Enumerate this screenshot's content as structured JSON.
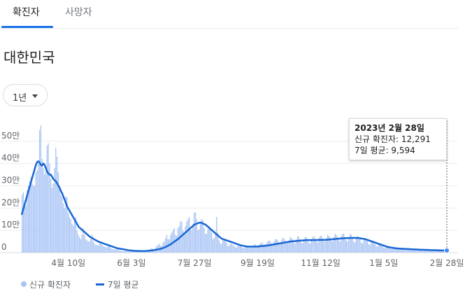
{
  "tabs": [
    {
      "label": "확진자",
      "active": true
    },
    {
      "label": "사망자",
      "active": false
    }
  ],
  "region": {
    "title": "대한민국"
  },
  "period": {
    "label": "1년"
  },
  "tooltip": {
    "date": "2023년 2월 28일",
    "new_cases": "신규 확진자: 12,291",
    "avg": "7일 평균: 9,594"
  },
  "legend": {
    "bars": "신규 확진자",
    "line": "7일 평균"
  },
  "colors": {
    "bar": "#a9c4f5",
    "line": "#1967d2",
    "accent": "#1a73e8",
    "grid": "#eeeeee"
  },
  "chart_data": {
    "type": "bar",
    "ylim": [
      0,
      60000
    ],
    "yticks": [
      {
        "value": 0,
        "label": "0"
      },
      {
        "value": 10000,
        "label": "10만"
      },
      {
        "value": 20000,
        "label": "20만"
      },
      {
        "value": 30000,
        "label": "30만"
      },
      {
        "value": 40000,
        "label": "40만"
      },
      {
        "value": 50000,
        "label": "50만"
      }
    ],
    "start_date": "2022-03-01",
    "end_date": "2023-02-28",
    "xticks": [
      {
        "date": "2022-04-10",
        "label": "4월 10일"
      },
      {
        "date": "2022-06-03",
        "label": "6월 3일"
      },
      {
        "date": "2022-07-27",
        "label": "7월 27일"
      },
      {
        "date": "2022-09-19",
        "label": "9월 19일"
      },
      {
        "date": "2022-11-12",
        "label": "11월 12일"
      },
      {
        "date": "2023-01-05",
        "label": "1월 5일"
      },
      {
        "date": "2023-02-28",
        "label": "2월 28일"
      }
    ],
    "series": [
      {
        "name": "신규 확진자",
        "type": "bar",
        "values": [
          26000,
          27000,
          22000,
          21000,
          28000,
          30000,
          32000,
          34000,
          31000,
          30000,
          30000,
          36000,
          37000,
          40000,
          55000,
          57000,
          42000,
          38000,
          35000,
          37000,
          48000,
          49000,
          40000,
          33000,
          29000,
          31000,
          38000,
          47000,
          43000,
          36000,
          29000,
          26000,
          25000,
          22000,
          20000,
          25000,
          25000,
          18000,
          16000,
          15000,
          13000,
          12000,
          14000,
          16000,
          10000,
          8000,
          7000,
          6000,
          8000,
          11000,
          8000,
          6000,
          5500,
          5000,
          5000,
          6000,
          8000,
          5000,
          4000,
          3500,
          3500,
          3000,
          4000,
          5000,
          3500,
          3000,
          2700,
          2500,
          2300,
          2800,
          3000,
          2000,
          1800,
          1500,
          1400,
          1300,
          1500,
          1800,
          1000,
          900,
          800,
          700,
          700,
          800,
          1000,
          600,
          500,
          500,
          500,
          600,
          600,
          700,
          500,
          500,
          500,
          600,
          700,
          900,
          1100,
          1000,
          700,
          800,
          1300,
          1700,
          2000,
          1600,
          1500,
          2300,
          3000,
          3500,
          4000,
          3000,
          3000,
          4500,
          5000,
          6500,
          8000,
          6000,
          6000,
          8000,
          9000,
          10000,
          11000,
          8000,
          7500,
          11000,
          12000,
          14000,
          14000,
          10000,
          9000,
          12000,
          14000,
          15000,
          16000,
          11000,
          10000,
          13000,
          18000,
          18000,
          15000,
          10000,
          10500,
          13000,
          15000,
          14500,
          11000,
          8500,
          8500,
          10500,
          12000,
          11000,
          9000,
          6000,
          6500,
          9000,
          16000,
          9000,
          5500,
          4000,
          4000,
          5500,
          6000,
          6000,
          4500,
          3000,
          3000,
          4000,
          4000,
          3500,
          3000,
          2500,
          2300,
          3000,
          3500,
          3000,
          2500,
          2200,
          2000,
          2500,
          3000,
          3000,
          2500,
          2300,
          2400,
          3000,
          3500,
          3800,
          3000,
          3200,
          3500,
          4000,
          4500,
          4200,
          3500,
          3800,
          4200,
          5000,
          5500,
          5000,
          4200,
          4000,
          5000,
          6000,
          6000,
          5500,
          4500,
          4200,
          5500,
          6500,
          6500,
          5500,
          4500,
          4500,
          5500,
          7000,
          6500,
          6000,
          4500,
          4000,
          6000,
          7500,
          7000,
          6000,
          4500,
          4200,
          5500,
          7000,
          7000,
          6000,
          4500,
          4000,
          6000,
          7000,
          7500,
          6500,
          5000,
          4500,
          6500,
          7500,
          7500,
          6500,
          5000,
          5000,
          6500,
          8000,
          7500,
          7000,
          5500,
          5000,
          7000,
          8500,
          8000,
          7000,
          5500,
          5000,
          7500,
          8500,
          8500,
          7000,
          5500,
          5000,
          7000,
          8500,
          8000,
          6500,
          5000,
          4500,
          6500,
          7500,
          7000,
          6000,
          4500,
          4000,
          5500,
          6500,
          6000,
          5000,
          3800,
          3400,
          4500,
          5000,
          4500,
          3800,
          3000,
          2700,
          3500,
          3800,
          3300,
          2800,
          2200,
          2000,
          2800,
          3000,
          2700,
          2200,
          1800,
          1700,
          2300,
          2500,
          2200,
          1900,
          1500,
          1400,
          2000,
          2200,
          1900,
          1600,
          1300,
          1200,
          1700,
          1900,
          1700,
          1400,
          1100,
          1000,
          1500,
          1700,
          1500,
          1300,
          1000,
          1000,
          1400,
          1600,
          1400,
          1200,
          900,
          900,
          1300,
          1500,
          1300,
          1100,
          900,
          900,
          1300,
          1500,
          1300,
          1100,
          900,
          1000,
          1229
        ]
      },
      {
        "name": "7일 평균",
        "type": "line",
        "values": [
          17000,
          19000,
          21000,
          23000,
          25000,
          27000,
          29000,
          31000,
          33000,
          35000,
          37000,
          39000,
          40500,
          41000,
          40500,
          39500,
          39000,
          40000,
          39500,
          38000,
          36500,
          35500,
          35000,
          35000,
          34000,
          33000,
          32500,
          32000,
          31000,
          30000,
          29000,
          27500,
          26500,
          25000,
          23500,
          22000,
          20500,
          19500,
          18500,
          17500,
          16500,
          15500,
          14500,
          13500,
          12500,
          11500,
          11000,
          10500,
          10000,
          9500,
          9000,
          8500,
          8000,
          7500,
          7000,
          6700,
          6400,
          6000,
          5700,
          5400,
          5100,
          4800,
          4600,
          4400,
          4200,
          4000,
          3800,
          3600,
          3400,
          3200,
          3000,
          2800,
          2600,
          2400,
          2200,
          2000,
          1900,
          1800,
          1700,
          1600,
          1500,
          1400,
          1300,
          1200,
          1100,
          1000,
          950,
          900,
          850,
          800,
          780,
          760,
          740,
          720,
          710,
          700,
          700,
          720,
          750,
          800,
          850,
          900,
          950,
          1000,
          1100,
          1200,
          1300,
          1400,
          1500,
          1650,
          1800,
          2000,
          2200,
          2400,
          2700,
          3000,
          3300,
          3600,
          4000,
          4400,
          4800,
          5200,
          5600,
          6000,
          6500,
          7000,
          7500,
          8000,
          8500,
          9000,
          9500,
          10000,
          10500,
          11000,
          11500,
          12000,
          12500,
          12800,
          13000,
          13200,
          13400,
          13500,
          13300,
          13000,
          12800,
          12500,
          12000,
          11500,
          11000,
          10500,
          10000,
          9500,
          9000,
          8500,
          8000,
          7500,
          7000,
          6500,
          6200,
          6000,
          5800,
          5600,
          5400,
          5200,
          5000,
          4800,
          4600,
          4400,
          4200,
          4000,
          3800,
          3600,
          3400,
          3200,
          3100,
          3000,
          2900,
          2800,
          2700,
          2700,
          2700,
          2700,
          2700,
          2700,
          2700,
          2700,
          2750,
          2800,
          2850,
          2900,
          2950,
          3000,
          3050,
          3100,
          3200,
          3300,
          3400,
          3500,
          3600,
          3700,
          3800,
          3900,
          4000,
          4100,
          4200,
          4300,
          4400,
          4500,
          4600,
          4700,
          4800,
          4900,
          5000,
          5050,
          5100,
          5150,
          5200,
          5250,
          5300,
          5350,
          5400,
          5450,
          5500,
          5550,
          5600,
          5600,
          5600,
          5600,
          5600,
          5600,
          5600,
          5600,
          5600,
          5650,
          5700,
          5700,
          5700,
          5700,
          5700,
          5700,
          5750,
          5800,
          5850,
          5900,
          5950,
          6000,
          6050,
          6100,
          6150,
          6200,
          6250,
          6300,
          6350,
          6400,
          6450,
          6500,
          6500,
          6500,
          6550,
          6600,
          6600,
          6600,
          6600,
          6600,
          6600,
          6600,
          6500,
          6400,
          6300,
          6200,
          6100,
          6000,
          5800,
          5600,
          5400,
          5200,
          5000,
          4800,
          4600,
          4400,
          4200,
          4000,
          3800,
          3600,
          3400,
          3200,
          3000,
          2800,
          2600,
          2500,
          2400,
          2300,
          2200,
          2100,
          2000,
          1950,
          1900,
          1850,
          1800,
          1750,
          1700,
          1700,
          1700,
          1650,
          1600,
          1600,
          1550,
          1500,
          1500,
          1450,
          1400,
          1400,
          1400,
          1350,
          1300,
          1300,
          1300,
          1250,
          1200,
          1200,
          1200,
          1200,
          1150,
          1100,
          1100,
          1100,
          1100,
          1100,
          1050,
          1000,
          1000,
          1000,
          1000,
          1000,
          980,
          959
        ]
      }
    ]
  }
}
